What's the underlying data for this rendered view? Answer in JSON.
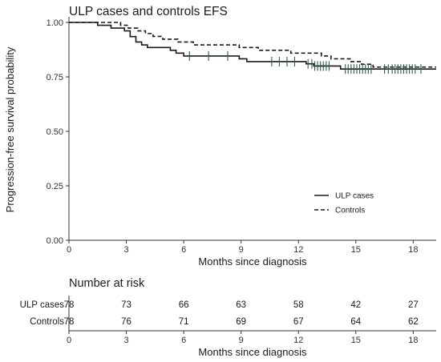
{
  "chart_data": [
    {
      "type": "line",
      "subtype": "kaplan-meier",
      "title": "ULP cases and controls EFS",
      "xlabel": "Months since diagnosis",
      "ylabel": "Progression-free survival probability",
      "xlim": [
        0,
        19.2
      ],
      "ylim": [
        0,
        1
      ],
      "xticks": [
        0,
        3,
        6,
        9,
        12,
        15,
        18
      ],
      "yticks": [
        0,
        0.25,
        0.5,
        0.75,
        1
      ],
      "ytick_labels": [
        "0.00",
        "0.25",
        "0.50",
        "0.75",
        "1.00"
      ],
      "grid": false,
      "legend_position": "bottom-right",
      "series": [
        {
          "name": "ULP cases",
          "style": "solid",
          "color": "#1a1a1a",
          "steps": [
            [
              0,
              1.0
            ],
            [
              1.5,
              0.987
            ],
            [
              2.2,
              0.974
            ],
            [
              2.9,
              0.961
            ],
            [
              3.2,
              0.935
            ],
            [
              3.5,
              0.91
            ],
            [
              3.8,
              0.897
            ],
            [
              4.1,
              0.885
            ],
            [
              5.3,
              0.872
            ],
            [
              5.6,
              0.859
            ],
            [
              6.0,
              0.846
            ],
            [
              8.9,
              0.833
            ],
            [
              9.3,
              0.82
            ],
            [
              12.4,
              0.81
            ],
            [
              12.8,
              0.8
            ],
            [
              14.2,
              0.786
            ],
            [
              19.2,
              0.786
            ]
          ],
          "censor_times": [
            6.3,
            7.3,
            8.3,
            10.6,
            11.0,
            11.4,
            11.8,
            12.5,
            12.7,
            12.85,
            13.0,
            13.15,
            13.3,
            13.45,
            13.6,
            14.45,
            14.6,
            14.75,
            14.9,
            15.05,
            15.2,
            15.35,
            15.5,
            15.65,
            15.8,
            16.5,
            16.7,
            16.9,
            17.05,
            17.2,
            17.35,
            17.5,
            17.65,
            17.8,
            17.95,
            18.1,
            18.4
          ]
        },
        {
          "name": "Controls",
          "style": "dashed",
          "color": "#1a1a1a",
          "steps": [
            [
              0,
              1.0
            ],
            [
              2.7,
              0.987
            ],
            [
              3.1,
              0.974
            ],
            [
              3.6,
              0.961
            ],
            [
              4.0,
              0.949
            ],
            [
              4.4,
              0.936
            ],
            [
              4.9,
              0.923
            ],
            [
              5.7,
              0.91
            ],
            [
              6.5,
              0.897
            ],
            [
              8.9,
              0.885
            ],
            [
              9.9,
              0.872
            ],
            [
              11.6,
              0.859
            ],
            [
              13.2,
              0.846
            ],
            [
              13.7,
              0.833
            ],
            [
              14.7,
              0.82
            ],
            [
              15.3,
              0.808
            ],
            [
              15.9,
              0.795
            ],
            [
              19.2,
              0.795
            ]
          ],
          "censor_times": []
        }
      ]
    },
    {
      "type": "table",
      "title": "Number at risk",
      "xlabel": "Months since diagnosis",
      "x": [
        0,
        3,
        6,
        9,
        12,
        15,
        18
      ],
      "rows": [
        {
          "name": "ULP cases",
          "values": [
            78,
            73,
            66,
            63,
            58,
            42,
            27
          ]
        },
        {
          "name": "Controls",
          "values": [
            78,
            76,
            71,
            69,
            67,
            64,
            62
          ]
        }
      ]
    }
  ],
  "colors": {
    "line": "#1a1a1a",
    "censor_mark": "#2f5a50",
    "axis": "#333333"
  }
}
